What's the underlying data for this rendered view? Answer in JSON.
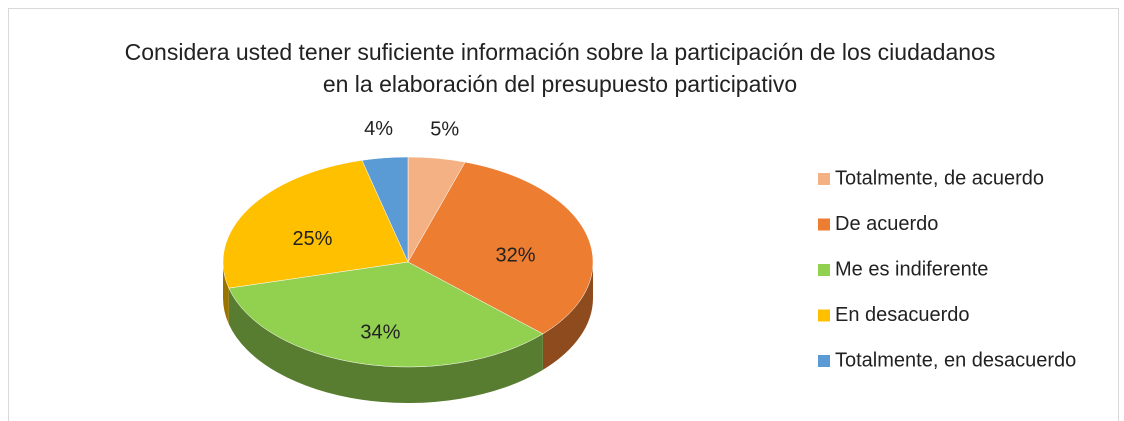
{
  "chart_data": {
    "type": "pie3d",
    "title": "Considera usted tener suficiente información sobre la participación de los ciudadanos en la elaboración del presupuesto participativo",
    "categories": [
      "Totalmente, de acuerdo",
      "De acuerdo",
      "Me es indiferente",
      "En desacuerdo",
      "Totalmente, en desacuerdo"
    ],
    "values": [
      5,
      32,
      34,
      25,
      4
    ],
    "value_labels": [
      "5%",
      "32%",
      "34%",
      "25%",
      "4%"
    ],
    "colors": [
      "#f4b183",
      "#ed7d31",
      "#92d050",
      "#ffc000",
      "#5b9bd5"
    ],
    "legend": "right"
  }
}
